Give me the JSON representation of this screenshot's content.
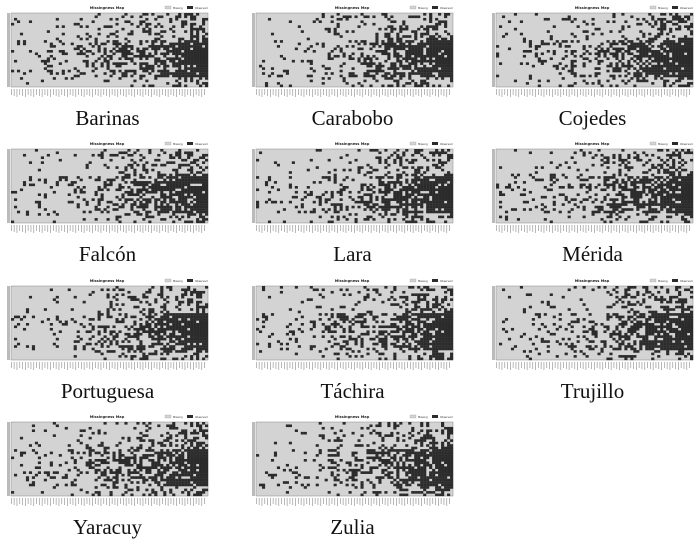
{
  "figure": {
    "plot_title": "Missingness Map",
    "legend_missing": "Missing",
    "legend_observed": "Observed",
    "panels": [
      {
        "state": "Barinas"
      },
      {
        "state": "Carabobo"
      },
      {
        "state": "Cojedes"
      },
      {
        "state": "Falcón"
      },
      {
        "state": "Lara"
      },
      {
        "state": "Mérida"
      },
      {
        "state": "Portuguesa"
      },
      {
        "state": "Táchira"
      },
      {
        "state": "Trujillo"
      },
      {
        "state": "Yaracuy"
      },
      {
        "state": "Zulia"
      }
    ]
  },
  "colors": {
    "missing": "#d3d3d3",
    "observed": "#2b2b2b",
    "frame": "#888888",
    "caption": "#111111"
  },
  "chart_data": [
    {
      "type": "heatmap",
      "title": "Missingness Map",
      "legend": [
        "Missing",
        "Observed"
      ],
      "caption": "Barinas"
    },
    {
      "type": "heatmap",
      "title": "Missingness Map",
      "legend": [
        "Missing",
        "Observed"
      ],
      "caption": "Carabobo"
    },
    {
      "type": "heatmap",
      "title": "Missingness Map",
      "legend": [
        "Missing",
        "Observed"
      ],
      "caption": "Cojedes"
    },
    {
      "type": "heatmap",
      "title": "Missingness Map",
      "legend": [
        "Missing",
        "Observed"
      ],
      "caption": "Falcón"
    },
    {
      "type": "heatmap",
      "title": "Missingness Map",
      "legend": [
        "Missing",
        "Observed"
      ],
      "caption": "Lara"
    },
    {
      "type": "heatmap",
      "title": "Missingness Map",
      "legend": [
        "Missing",
        "Observed"
      ],
      "caption": "Mérida"
    },
    {
      "type": "heatmap",
      "title": "Missingness Map",
      "legend": [
        "Missing",
        "Observed"
      ],
      "caption": "Portuguesa"
    },
    {
      "type": "heatmap",
      "title": "Missingness Map",
      "legend": [
        "Missing",
        "Observed"
      ],
      "caption": "Táchira"
    },
    {
      "type": "heatmap",
      "title": "Missingness Map",
      "legend": [
        "Missing",
        "Observed"
      ],
      "caption": "Trujillo"
    },
    {
      "type": "heatmap",
      "title": "Missingness Map",
      "legend": [
        "Missing",
        "Observed"
      ],
      "caption": "Yaracuy"
    },
    {
      "type": "heatmap",
      "title": "Missingness Map",
      "legend": [
        "Missing",
        "Observed"
      ],
      "caption": "Zulia"
    }
  ]
}
